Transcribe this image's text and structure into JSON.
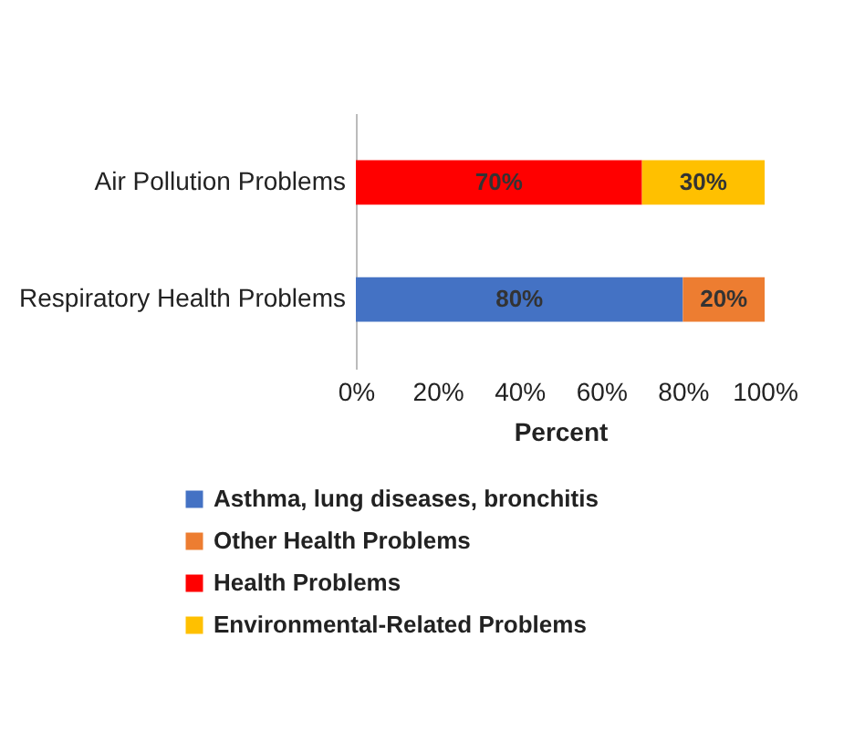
{
  "chart_data": {
    "type": "bar",
    "orientation": "horizontal",
    "stacked": true,
    "categories": [
      "Air Pollution Problems",
      "Respiratory Health Problems"
    ],
    "series": [
      {
        "name": "Asthma, lung diseases, bronchitis",
        "color": "#4472c4",
        "values": [
          null,
          80
        ],
        "value_labels": [
          null,
          "80%"
        ]
      },
      {
        "name": "Other Health Problems",
        "color": "#ed7d31",
        "values": [
          null,
          20
        ],
        "value_labels": [
          null,
          "20%"
        ]
      },
      {
        "name": "Health Problems",
        "color": "#ff0000",
        "values": [
          70,
          null
        ],
        "value_labels": [
          "70%",
          null
        ]
      },
      {
        "name": "Environmental-Related Problems",
        "color": "#ffc000",
        "values": [
          30,
          null
        ],
        "value_labels": [
          "30%",
          null
        ]
      }
    ],
    "xlabel": "Percent",
    "xlim": [
      0,
      100
    ],
    "xticks": [
      {
        "value": 0,
        "label": "0%"
      },
      {
        "value": 20,
        "label": "20%"
      },
      {
        "value": 40,
        "label": "40%"
      },
      {
        "value": 60,
        "label": "60%"
      },
      {
        "value": 80,
        "label": "80%"
      },
      {
        "value": 100,
        "label": "100%"
      }
    ],
    "legend": "bottom"
  }
}
